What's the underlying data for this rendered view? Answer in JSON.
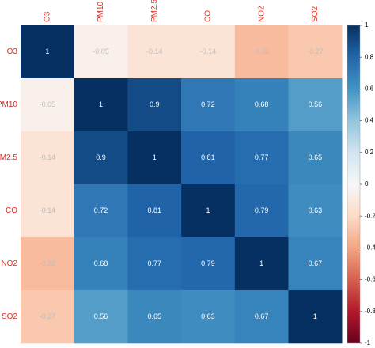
{
  "chart_data": {
    "type": "heatmap",
    "variables": [
      "O3",
      "PM10",
      "PM2.5",
      "CO",
      "NO2",
      "SO2"
    ],
    "matrix": [
      [
        1,
        -0.05,
        -0.14,
        -0.14,
        -0.32,
        -0.27
      ],
      [
        -0.05,
        1,
        0.9,
        0.72,
        0.68,
        0.56
      ],
      [
        -0.14,
        0.9,
        1,
        0.81,
        0.77,
        0.65
      ],
      [
        -0.14,
        0.72,
        0.81,
        1,
        0.79,
        0.63
      ],
      [
        -0.32,
        0.68,
        0.77,
        0.79,
        1,
        0.67
      ],
      [
        -0.27,
        0.56,
        0.65,
        0.63,
        0.67,
        1
      ]
    ],
    "value_labels": [
      [
        "1",
        "-0.05",
        "-0.14",
        "-0.14",
        "-0.32",
        "-0.27"
      ],
      [
        "-0.05",
        "1",
        "0.9",
        "0.72",
        "0.68",
        "0.56"
      ],
      [
        "-0.14",
        "0.9",
        "1",
        "0.81",
        "0.77",
        "0.65"
      ],
      [
        "-0.14",
        "0.72",
        "0.81",
        "1",
        "0.79",
        "0.63"
      ],
      [
        "-0.32",
        "0.68",
        "0.77",
        "0.79",
        "1",
        "0.67"
      ],
      [
        "-0.27",
        "0.56",
        "0.65",
        "0.63",
        "0.67",
        "1"
      ]
    ],
    "colorbar": {
      "range": [
        -1,
        1
      ],
      "ticks": [
        "1",
        "0.8",
        "0.6",
        "0.4",
        "0.2",
        "0",
        "-0.2",
        "-0.4",
        "-0.6",
        "-0.8",
        "-1"
      ],
      "placement": "right"
    },
    "label_color": "#e8291c",
    "grid": false
  }
}
